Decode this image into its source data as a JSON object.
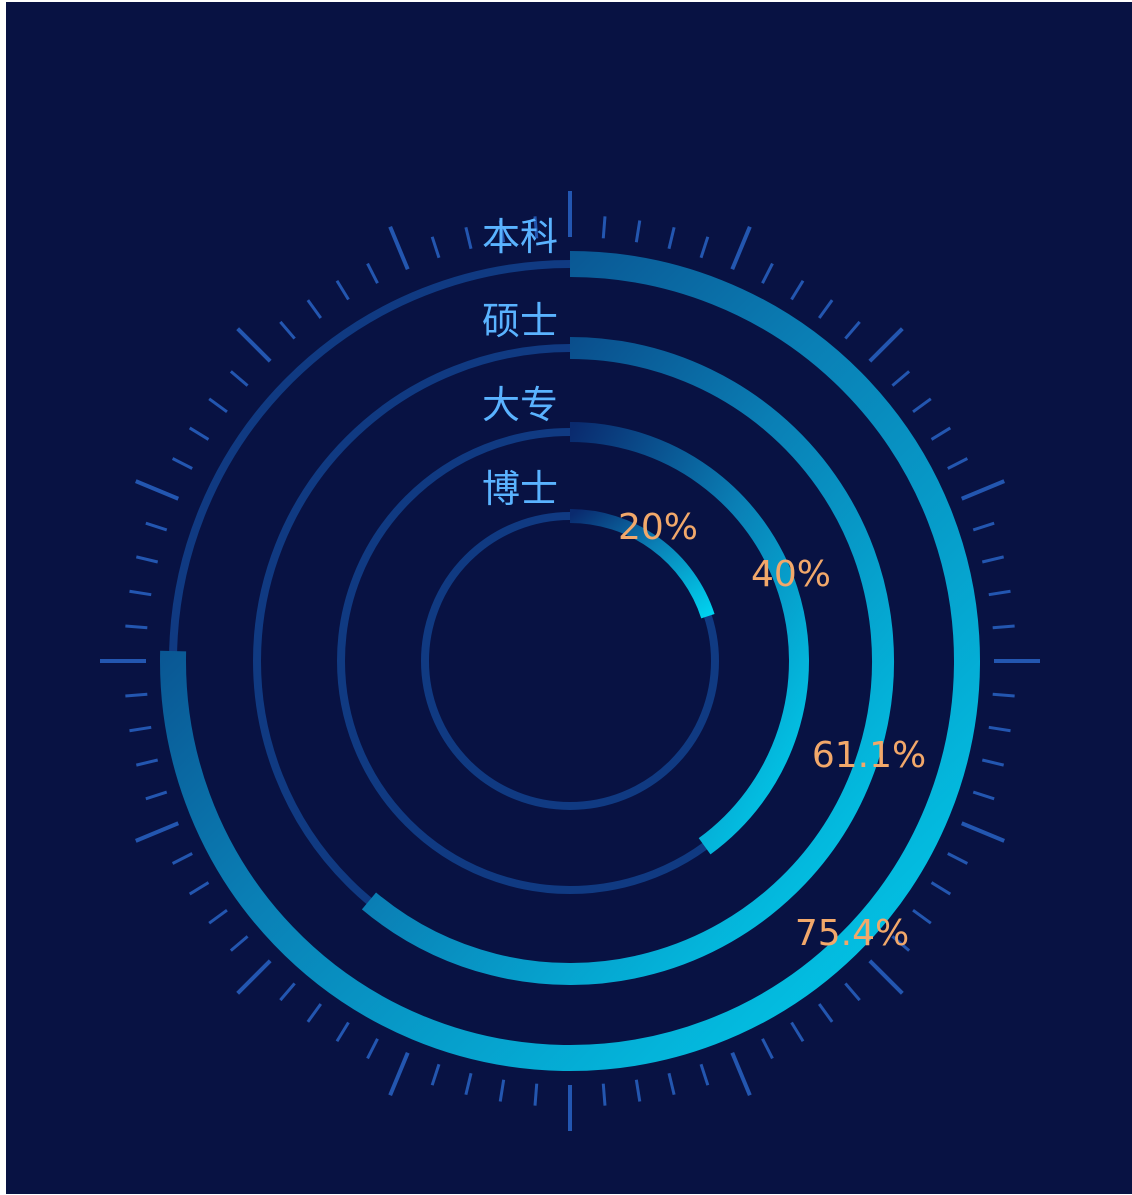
{
  "chart_data": {
    "type": "radial-bar",
    "title": "",
    "series": [
      {
        "category": "本科",
        "value": 75.4,
        "value_label": "75.4%"
      },
      {
        "category": "硕士",
        "value": 61.1,
        "value_label": "61.1%"
      },
      {
        "category": "大专",
        "value": 40,
        "value_label": "40%"
      },
      {
        "category": "博士",
        "value": 20,
        "value_label": "20%"
      }
    ],
    "max": 100,
    "colors": {
      "background": "#081243",
      "track": "#103a82",
      "bar_start": "#0a2a6e",
      "bar_end": "#00d2ef",
      "tick": "#2356b0",
      "category_label": "#5ab3ff",
      "value_label": "#f2a86a"
    }
  }
}
